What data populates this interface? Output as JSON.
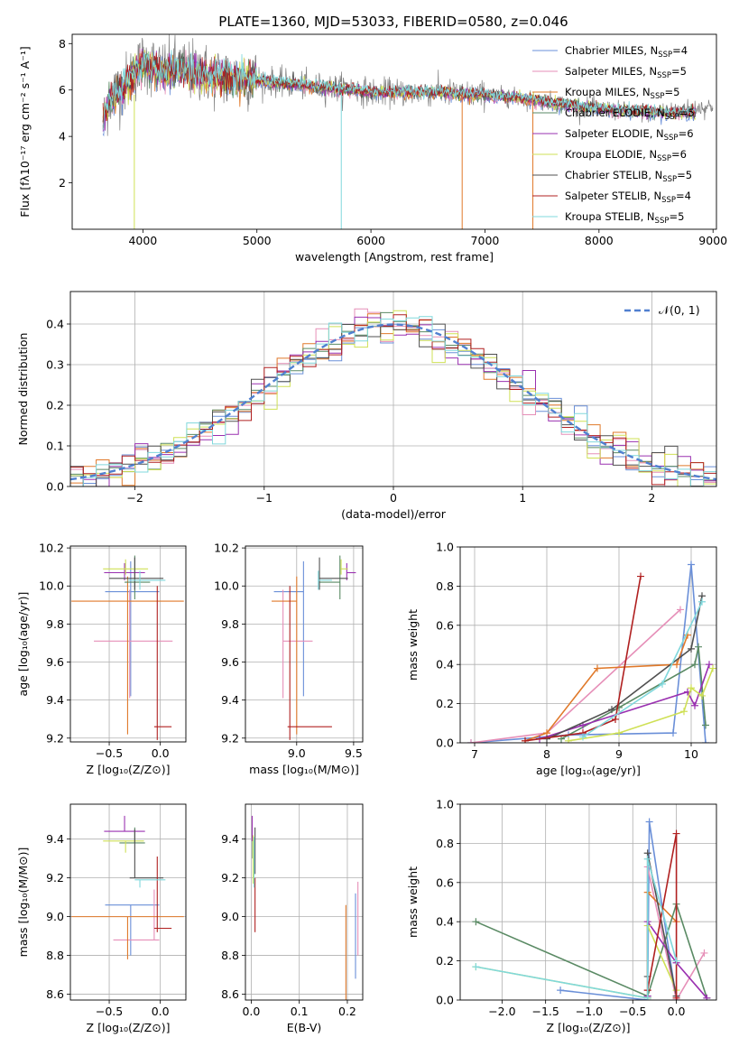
{
  "page_title": "PLATE=1360, MJD=53033, FIBERID=0580, z=0.046",
  "series_colors": {
    "Chabrier MILES": "#6a8fd8",
    "Salpeter MILES": "#e68fb8",
    "Kroupa MILES": "#e0792a",
    "Chabrier ELODIE": "#5a8a64",
    "Salpeter ELODIE": "#9a30b0",
    "Kroupa ELODIE": "#cfe055",
    "Chabrier STELIB": "#505050",
    "Salpeter STELIB": "#b02020",
    "Kroupa STELIB": "#80d8dc"
  },
  "chart_data": [
    {
      "id": "spectrum",
      "type": "line",
      "title": "PLATE=1360, MJD=53033, FIBERID=0580, z=0.046",
      "xlabel": "wavelength [Angstrom, rest frame]",
      "ylabel": "Flux [fλ10⁻¹⁷ erg cm⁻² s⁻¹ A⁻¹]",
      "xlim": [
        3380,
        9030
      ],
      "ylim": [
        0,
        8.4
      ],
      "xticks": [
        4000,
        5000,
        6000,
        7000,
        8000,
        9000
      ],
      "yticks": [
        2,
        4,
        6,
        8
      ],
      "grid": false,
      "legend_position": "right",
      "legend": [
        {
          "label": "Chabrier MILES, N",
          "sub": "SSP",
          "suffix": "=4"
        },
        {
          "label": "Salpeter MILES, N",
          "sub": "SSP",
          "suffix": "=5"
        },
        {
          "label": "Kroupa MILES, N",
          "sub": "SSP",
          "suffix": "=5"
        },
        {
          "label": "Chabrier ELODIE, N",
          "sub": "SSP",
          "suffix": "=5"
        },
        {
          "label": "Salpeter ELODIE, N",
          "sub": "SSP",
          "suffix": "=6"
        },
        {
          "label": "Kroupa ELODIE, N",
          "sub": "SSP",
          "suffix": "=6"
        },
        {
          "label": "Chabrier STELIB, N",
          "sub": "SSP",
          "suffix": "=5"
        },
        {
          "label": "Salpeter STELIB, N",
          "sub": "SSP",
          "suffix": "=4"
        },
        {
          "label": "Kroupa STELIB, N",
          "sub": "SSP",
          "suffix": "=5"
        }
      ],
      "data_curve": {
        "name": "data",
        "x": [
          3650,
          3700,
          3800,
          3900,
          4000,
          4100,
          4200,
          4300,
          4400,
          4500,
          4600,
          4800,
          5000,
          5200,
          5400,
          5600,
          5800,
          6000,
          6200,
          6400,
          6600,
          6800,
          7000,
          7200,
          7400,
          7600,
          7800,
          8000,
          8200,
          8400,
          8600,
          8800,
          9000
        ],
        "y": [
          4.5,
          5.6,
          6.0,
          6.6,
          7.2,
          7.0,
          6.8,
          7.0,
          6.8,
          6.8,
          6.6,
          6.5,
          6.5,
          6.3,
          6.2,
          6.1,
          6.1,
          5.9,
          5.9,
          5.9,
          5.9,
          5.8,
          5.8,
          5.7,
          5.6,
          5.5,
          5.3,
          5.2,
          5.1,
          5.0,
          5.1,
          5.2,
          5.3
        ],
        "noise": 1.2
      },
      "model_curve": {
        "name": "model",
        "x": [
          3650,
          3700,
          3800,
          3900,
          4000,
          4100,
          4200,
          4300,
          4400,
          4500,
          4600,
          4800,
          5000,
          5200,
          5400,
          5600,
          5800,
          6000,
          6200,
          6400,
          6600,
          6800,
          7000,
          7200,
          7400,
          7600,
          7800,
          8000,
          8200,
          8400,
          8600,
          8800,
          9000
        ],
        "y": [
          4.6,
          5.4,
          5.9,
          6.5,
          7.2,
          6.9,
          6.7,
          6.9,
          6.8,
          6.7,
          6.6,
          6.5,
          6.4,
          6.3,
          6.2,
          6.1,
          6.0,
          5.9,
          5.9,
          5.9,
          5.9,
          5.8,
          5.8,
          5.7,
          5.6,
          5.4,
          5.3,
          5.2,
          5.1,
          5.1,
          5.0,
          5.0,
          5.0
        ]
      }
    },
    {
      "id": "residuals",
      "type": "line",
      "xlabel": "(data-model)/error",
      "ylabel": "Normed distribution",
      "xlim": [
        -2.5,
        2.5
      ],
      "ylim": [
        0,
        0.48
      ],
      "xticks": [
        -2,
        -1,
        0,
        1,
        2
      ],
      "yticks": [
        0.0,
        0.1,
        0.2,
        0.3,
        0.4
      ],
      "grid": true,
      "legend_position": "top-right",
      "gaussian_label": "𝒩(0, 1)",
      "bin_width": 0.1
    },
    {
      "id": "age-vs-Z",
      "type": "scatter",
      "xlabel": "Z [log₁₀(Z/Z⊙)]",
      "ylabel": "age  [log₁₀(age/yr)]",
      "xlim": [
        -0.88,
        0.25
      ],
      "ylim": [
        9.18,
        10.21
      ],
      "xticks": [
        -0.5,
        0.0
      ],
      "yticks": [
        9.2,
        9.4,
        9.6,
        9.8,
        10.0,
        10.2
      ],
      "grid": true,
      "points": [
        {
          "series": "Chabrier MILES",
          "x": -0.29,
          "xerr": [
            0.25,
            0.28
          ],
          "y": 9.97,
          "yerr": [
            0.55,
            0.16
          ]
        },
        {
          "series": "Salpeter MILES",
          "x": -0.3,
          "xerr": [
            0.35,
            0.42
          ],
          "y": 9.71,
          "yerr": [
            0.3,
            0.27
          ]
        },
        {
          "series": "Kroupa MILES",
          "x": -0.32,
          "xerr": [
            0.55,
            0.55
          ],
          "y": 9.92,
          "yerr": [
            0.7,
            0.13
          ]
        },
        {
          "series": "Chabrier ELODIE",
          "x": -0.25,
          "xerr": [
            0.1,
            0.15
          ],
          "y": 10.02,
          "yerr": [
            0.09,
            0.14
          ]
        },
        {
          "series": "Salpeter ELODIE",
          "x": -0.35,
          "xerr": [
            0.2,
            0.2
          ],
          "y": 10.07,
          "yerr": [
            0.04,
            0.05
          ]
        },
        {
          "series": "Kroupa ELODIE",
          "x": -0.34,
          "xerr": [
            0.22,
            0.22
          ],
          "y": 10.09,
          "yerr": [
            0.03,
            0.05
          ]
        },
        {
          "series": "Chabrier STELIB",
          "x": -0.25,
          "xerr": [
            0.25,
            0.28
          ],
          "y": 10.04,
          "yerr": [
            0.06,
            0.11
          ]
        },
        {
          "series": "Salpeter STELIB",
          "x": -0.03,
          "xerr": [
            0.03,
            0.14
          ],
          "y": 9.26,
          "yerr": [
            0.07,
            0.74
          ]
        },
        {
          "series": "Kroupa STELIB",
          "x": -0.2,
          "xerr": [
            0.12,
            0.25
          ],
          "y": 10.03,
          "yerr": [
            0.05,
            0.05
          ]
        }
      ]
    },
    {
      "id": "age-vs-mass",
      "type": "scatter",
      "xlabel": "mass [log₁₀(M/M⊙)]",
      "ylabel": "",
      "xlim": [
        8.55,
        9.58
      ],
      "ylim": [
        9.18,
        10.21
      ],
      "xticks": [
        9.0,
        9.5
      ],
      "yticks": [
        9.2,
        9.4,
        9.6,
        9.8,
        10.0,
        10.2
      ],
      "grid": true,
      "points": [
        {
          "series": "Chabrier MILES",
          "x": 9.06,
          "xerr": [
            0.26,
            0.0
          ],
          "y": 9.97,
          "yerr": [
            0.55,
            0.16
          ]
        },
        {
          "series": "Salpeter MILES",
          "x": 8.88,
          "xerr": [
            0.0,
            0.26
          ],
          "y": 9.71,
          "yerr": [
            0.3,
            0.27
          ]
        },
        {
          "series": "Kroupa MILES",
          "x": 9.0,
          "xerr": [
            0.22,
            0.0
          ],
          "y": 9.92,
          "yerr": [
            0.7,
            0.13
          ]
        },
        {
          "series": "Chabrier ELODIE",
          "x": 9.38,
          "xerr": [
            0.18,
            0.0
          ],
          "y": 10.02,
          "yerr": [
            0.09,
            0.14
          ]
        },
        {
          "series": "Salpeter ELODIE",
          "x": 9.44,
          "xerr": [
            0.0,
            0.08
          ],
          "y": 10.07,
          "yerr": [
            0.04,
            0.05
          ]
        },
        {
          "series": "Kroupa ELODIE",
          "x": 9.39,
          "xerr": [
            0.0,
            0.06
          ],
          "y": 10.09,
          "yerr": [
            0.03,
            0.05
          ]
        },
        {
          "series": "Chabrier STELIB",
          "x": 9.2,
          "xerr": [
            0.0,
            0.25
          ],
          "y": 10.04,
          "yerr": [
            0.06,
            0.11
          ]
        },
        {
          "series": "Salpeter STELIB",
          "x": 8.94,
          "xerr": [
            0.02,
            0.37
          ],
          "y": 9.26,
          "yerr": [
            0.07,
            0.74
          ]
        },
        {
          "series": "Kroupa STELIB",
          "x": 9.19,
          "xerr": [
            0.0,
            0.12
          ],
          "y": 10.03,
          "yerr": [
            0.05,
            0.05
          ]
        }
      ]
    },
    {
      "id": "weight-vs-age",
      "type": "line",
      "xlabel": "age  [log₁₀(age/yr)]",
      "ylabel": "mass weight",
      "xlim": [
        6.8,
        10.35
      ],
      "ylim": [
        0,
        1.0
      ],
      "xticks": [
        7,
        8,
        9,
        10
      ],
      "yticks": [
        0.0,
        0.2,
        0.4,
        0.6,
        0.8,
        1.0
      ],
      "grid": true,
      "series": [
        {
          "name": "Chabrier MILES",
          "x": [
            6.95,
            8.3,
            9.75,
            10.0,
            10.2
          ],
          "y": [
            0.0,
            0.04,
            0.05,
            0.91,
            0.0
          ]
        },
        {
          "name": "Salpeter MILES",
          "x": [
            6.95,
            8.0,
            9.85
          ],
          "y": [
            0.0,
            0.05,
            0.68
          ]
        },
        {
          "name": "Kroupa MILES",
          "x": [
            7.7,
            8.0,
            8.7,
            9.8,
            9.95
          ],
          "y": [
            0.01,
            0.05,
            0.38,
            0.4,
            0.55
          ]
        },
        {
          "name": "Chabrier ELODIE",
          "x": [
            8.2,
            9.0,
            10.05,
            10.1,
            10.2
          ],
          "y": [
            0.02,
            0.18,
            0.4,
            0.49,
            0.09
          ]
        },
        {
          "name": "Salpeter ELODIE",
          "x": [
            7.9,
            8.5,
            9.95,
            10.05,
            10.25
          ],
          "y": [
            0.02,
            0.09,
            0.26,
            0.19,
            0.4
          ]
        },
        {
          "name": "Kroupa ELODIE",
          "x": [
            8.3,
            9.0,
            9.9,
            10.0,
            10.15,
            10.3
          ],
          "y": [
            0.01,
            0.05,
            0.16,
            0.28,
            0.24,
            0.38
          ]
        },
        {
          "name": "Chabrier STELIB",
          "x": [
            8.0,
            8.9,
            10.0,
            10.15
          ],
          "y": [
            0.02,
            0.17,
            0.48,
            0.75
          ]
        },
        {
          "name": "Salpeter STELIB",
          "x": [
            7.7,
            8.5,
            8.95,
            9.3
          ],
          "y": [
            0.01,
            0.05,
            0.12,
            0.85
          ]
        },
        {
          "name": "Kroupa STELIB",
          "x": [
            8.5,
            9.6,
            10.15
          ],
          "y": [
            0.03,
            0.3,
            0.72
          ]
        }
      ]
    },
    {
      "id": "mass-vs-Z",
      "type": "scatter",
      "xlabel": "Z [log₁₀(Z/Z⊙)]",
      "ylabel": "mass [log₁₀(M/M⊙)]",
      "xlim": [
        -0.88,
        0.25
      ],
      "ylim": [
        8.57,
        9.58
      ],
      "xticks": [
        -0.5,
        0.0
      ],
      "yticks": [
        8.6,
        8.8,
        9.0,
        9.2,
        9.4
      ],
      "grid": true,
      "points": [
        {
          "series": "Chabrier MILES",
          "x": -0.29,
          "xerr": [
            0.25,
            0.28
          ],
          "y": 9.06,
          "yerr": [
            0.26,
            0.0
          ]
        },
        {
          "series": "Salpeter MILES",
          "x": -0.06,
          "xerr": [
            0.4,
            0.05
          ],
          "y": 8.88,
          "yerr": [
            0.0,
            0.26
          ]
        },
        {
          "series": "Kroupa MILES",
          "x": -0.32,
          "xerr": [
            0.55,
            0.55
          ],
          "y": 9.0,
          "yerr": [
            0.22,
            0.0
          ]
        },
        {
          "series": "Chabrier ELODIE",
          "x": -0.25,
          "xerr": [
            0.15,
            0.1
          ],
          "y": 9.38,
          "yerr": [
            0.0,
            0.08
          ]
        },
        {
          "series": "Salpeter ELODIE",
          "x": -0.35,
          "xerr": [
            0.2,
            0.2
          ],
          "y": 9.44,
          "yerr": [
            0.0,
            0.08
          ]
        },
        {
          "series": "Kroupa ELODIE",
          "x": -0.34,
          "xerr": [
            0.22,
            0.18
          ],
          "y": 9.39,
          "yerr": [
            0.06,
            0.0
          ]
        },
        {
          "series": "Chabrier STELIB",
          "x": -0.25,
          "xerr": [
            0.05,
            0.28
          ],
          "y": 9.2,
          "yerr": [
            0.0,
            0.25
          ]
        },
        {
          "series": "Salpeter STELIB",
          "x": -0.03,
          "xerr": [
            0.03,
            0.14
          ],
          "y": 8.94,
          "yerr": [
            0.02,
            0.37
          ]
        },
        {
          "series": "Kroupa STELIB",
          "x": -0.2,
          "xerr": [
            0.05,
            0.25
          ],
          "y": 9.19,
          "yerr": [
            0.04,
            0.0
          ]
        }
      ]
    },
    {
      "id": "mass-vs-ebv",
      "type": "scatter",
      "xlabel": "E(B-V)",
      "ylabel": "",
      "xlim": [
        -0.012,
        0.232
      ],
      "ylim": [
        8.57,
        9.58
      ],
      "xticks": [
        0.0,
        0.1,
        0.2
      ],
      "yticks": [
        8.6,
        8.8,
        9.0,
        9.2,
        9.4
      ],
      "grid": true,
      "points": [
        {
          "series": "Chabrier MILES",
          "x": 0.217,
          "y": 8.88,
          "yerr": [
            0.2,
            0.24
          ]
        },
        {
          "series": "Salpeter MILES",
          "x": 0.222,
          "y": 8.95,
          "yerr": [
            0.15,
            0.23
          ]
        },
        {
          "series": "Kroupa MILES",
          "x": 0.197,
          "y": 8.75,
          "yerr": [
            0.18,
            0.31
          ]
        },
        {
          "series": "Chabrier ELODIE",
          "x": 0.003,
          "y": 9.36,
          "yerr": [
            0.06,
            0.05
          ]
        },
        {
          "series": "Salpeter ELODIE",
          "x": 0.002,
          "y": 9.44,
          "yerr": [
            0.05,
            0.08
          ]
        },
        {
          "series": "Kroupa ELODIE",
          "x": 0.004,
          "y": 9.32,
          "yerr": [
            0.15,
            0.1
          ]
        },
        {
          "series": "Chabrier STELIB",
          "x": 0.008,
          "y": 9.38,
          "yerr": [
            0.16,
            0.08
          ]
        },
        {
          "series": "Salpeter STELIB",
          "x": 0.008,
          "y": 9.1,
          "yerr": [
            0.18,
            0.1
          ]
        },
        {
          "series": "Kroupa STELIB",
          "x": 0.006,
          "y": 9.28,
          "yerr": [
            0.13,
            0.13
          ]
        }
      ]
    },
    {
      "id": "weight-vs-Z",
      "type": "line",
      "xlabel": "Z [log₁₀(Z/Z⊙)]",
      "ylabel": "mass weight",
      "xlim": [
        -2.48,
        0.46
      ],
      "ylim": [
        0,
        1.0
      ],
      "xticks": [
        -2.0,
        -1.5,
        -1.0,
        -0.5,
        0.0
      ],
      "yticks": [
        0.0,
        0.2,
        0.4,
        0.6,
        0.8,
        1.0
      ],
      "grid": true,
      "series": [
        {
          "name": "Chabrier MILES",
          "x": [
            -1.33,
            -0.33,
            -0.31,
            0.0
          ],
          "y": [
            0.05,
            0.0,
            0.91,
            0.0
          ]
        },
        {
          "name": "Salpeter MILES",
          "x": [
            -0.33,
            -0.33,
            0.0,
            0.32
          ],
          "y": [
            0.05,
            0.68,
            0.0,
            0.24
          ]
        },
        {
          "name": "Kroupa MILES",
          "x": [
            -0.33,
            -0.33,
            0.0
          ],
          "y": [
            0.01,
            0.55,
            0.4
          ]
        },
        {
          "name": "Chabrier ELODIE",
          "x": [
            -2.3,
            -0.33,
            0.0,
            0.35
          ],
          "y": [
            0.4,
            0.02,
            0.49,
            0.01
          ]
        },
        {
          "name": "Salpeter ELODIE",
          "x": [
            -0.33,
            -0.33,
            0.0,
            0.35
          ],
          "y": [
            0.02,
            0.4,
            0.19,
            0.01
          ]
        },
        {
          "name": "Kroupa ELODIE",
          "x": [
            -2.3,
            -0.33,
            -0.33,
            0.0
          ],
          "y": [
            0.17,
            0.01,
            0.38,
            0.05
          ]
        },
        {
          "name": "Chabrier STELIB",
          "x": [
            -0.33,
            -0.33,
            0.0
          ],
          "y": [
            0.12,
            0.75,
            0.02
          ]
        },
        {
          "name": "Salpeter STELIB",
          "x": [
            -0.33,
            0.0,
            0.0
          ],
          "y": [
            0.05,
            0.85,
            0.01
          ]
        },
        {
          "name": "Kroupa STELIB",
          "x": [
            -2.3,
            -0.33,
            -0.33,
            0.0
          ],
          "y": [
            0.17,
            0.01,
            0.72,
            0.2
          ]
        }
      ]
    }
  ]
}
